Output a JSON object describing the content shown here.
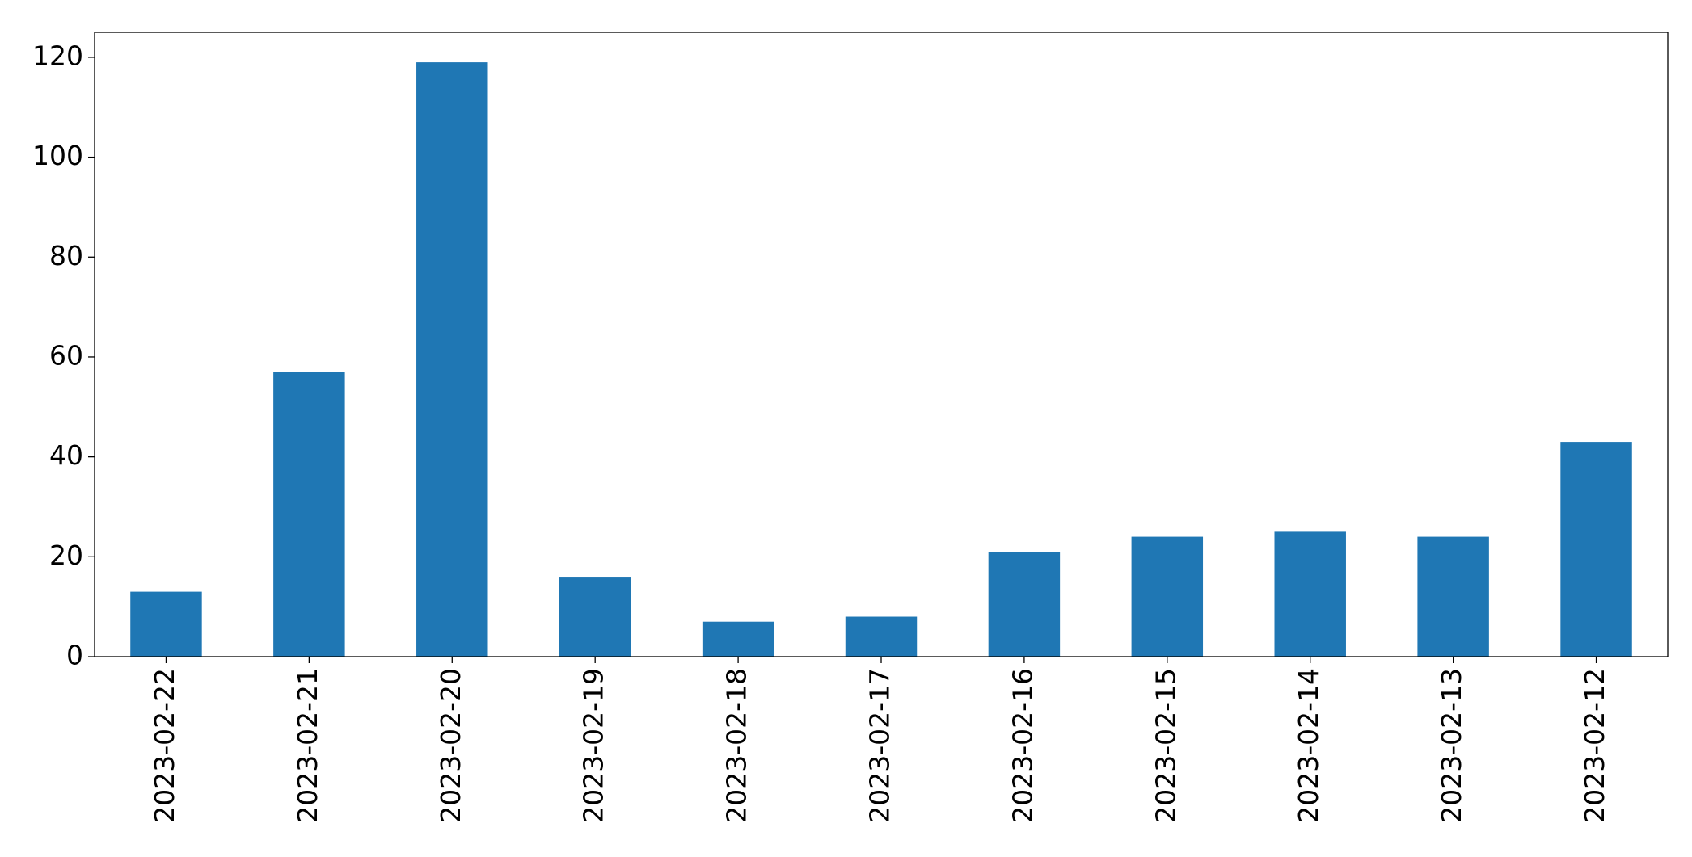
{
  "chart_data": {
    "type": "bar",
    "categories": [
      "2023-02-22",
      "2023-02-21",
      "2023-02-20",
      "2023-02-19",
      "2023-02-18",
      "2023-02-17",
      "2023-02-16",
      "2023-02-15",
      "2023-02-14",
      "2023-02-13",
      "2023-02-12"
    ],
    "values": [
      13,
      57,
      119,
      16,
      7,
      8,
      21,
      24,
      25,
      24,
      43
    ],
    "color": "#1f77b4",
    "ylim": [
      0,
      125
    ],
    "yticks": [
      0,
      20,
      40,
      60,
      80,
      100,
      120
    ],
    "grid": false
  }
}
